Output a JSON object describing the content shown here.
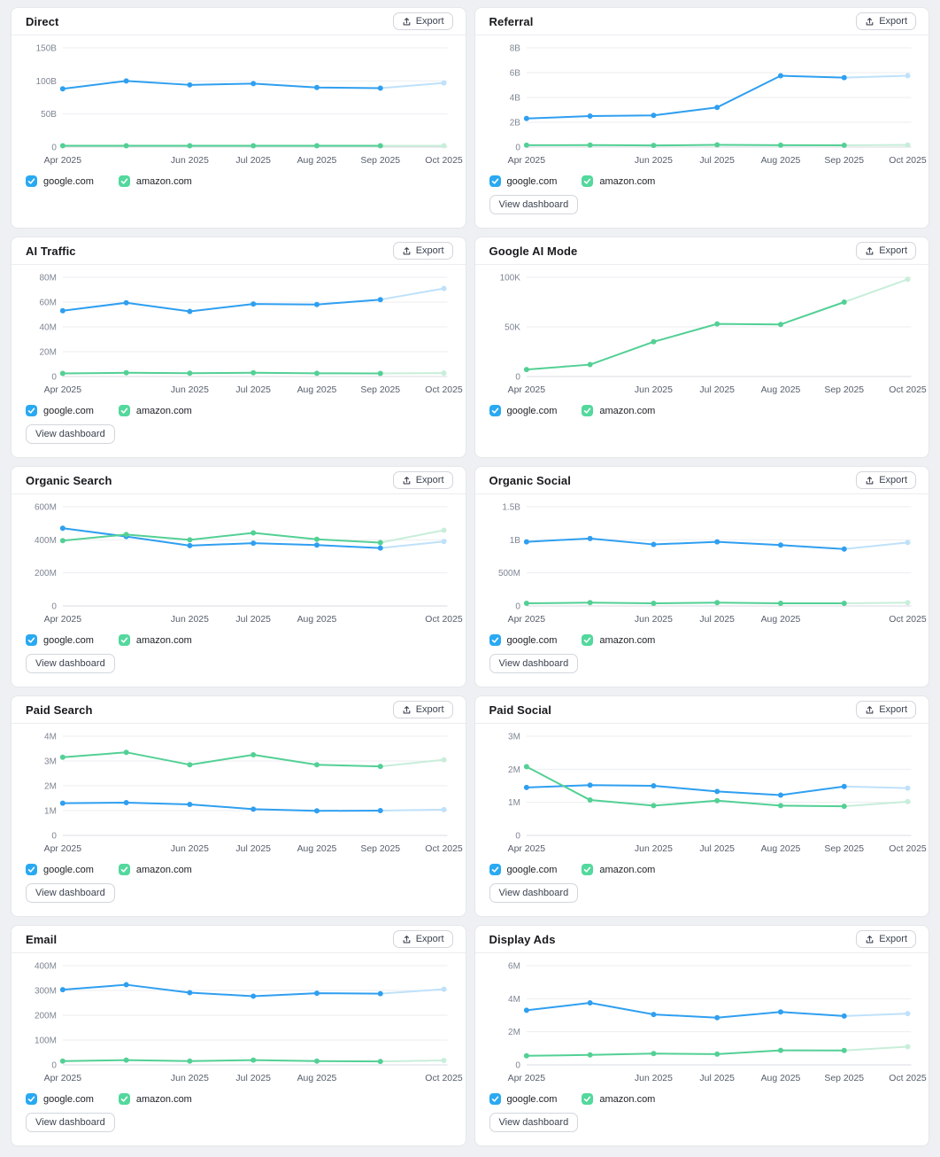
{
  "page": {
    "background": "#eef0f3",
    "card_background": "#ffffff"
  },
  "labels": {
    "export": "Export",
    "view_dashboard": "View dashboard"
  },
  "colors": {
    "google_line": "#2f9ff0",
    "google_forecast": "#bfe1fa",
    "amazon_line": "#53d095",
    "amazon_forecast": "#c8eeda",
    "google_checkbox": "#29a9f2",
    "amazon_checkbox": "#53d89d",
    "grid_line": "#eceef1",
    "zero_line": "#d8dbe0"
  },
  "legend": {
    "items": [
      {
        "label": "google.com",
        "checked": true,
        "color_key": "google"
      },
      {
        "label": "amazon.com",
        "checked": true,
        "color_key": "amazon"
      }
    ]
  },
  "cards": [
    {
      "title": "Direct",
      "has_view_dashboard": false,
      "chart_data": {
        "type": "line",
        "x": [
          "Apr 2025",
          "May 2025",
          "Jun 2025",
          "Jul 2025",
          "Aug 2025",
          "Sep 2025",
          "Oct 2025"
        ],
        "x_label_indices": [
          0,
          2,
          3,
          4,
          5,
          6
        ],
        "y_ticks": [
          {
            "label": "150B",
            "value": 150
          },
          {
            "label": "100B",
            "value": 100
          },
          {
            "label": "50B",
            "value": 50
          },
          {
            "label": "0",
            "value": 0
          }
        ],
        "y_max": 150,
        "unit": "B",
        "forecast_last_point": true,
        "series": [
          {
            "name": "google.com",
            "color_key": "google",
            "values": [
              88,
              100,
              94,
              96,
              90,
              89,
              97
            ]
          },
          {
            "name": "amazon.com",
            "color_key": "amazon",
            "values": [
              2,
              2,
              2,
              2,
              2,
              2,
              2
            ]
          }
        ]
      }
    },
    {
      "title": "Referral",
      "has_view_dashboard": true,
      "chart_data": {
        "type": "line",
        "x": [
          "Apr 2025",
          "May 2025",
          "Jun 2025",
          "Jul 2025",
          "Aug 2025",
          "Sep 2025",
          "Oct 2025"
        ],
        "x_label_indices": [
          0,
          2,
          3,
          4,
          5,
          6
        ],
        "y_ticks": [
          {
            "label": "8B",
            "value": 8
          },
          {
            "label": "6B",
            "value": 6
          },
          {
            "label": "4B",
            "value": 4
          },
          {
            "label": "2B",
            "value": 2
          },
          {
            "label": "0",
            "value": 0
          }
        ],
        "y_max": 8,
        "unit": "B",
        "forecast_last_point": true,
        "series": [
          {
            "name": "google.com",
            "color_key": "google",
            "values": [
              2.3,
              2.5,
              2.55,
              3.2,
              5.75,
              5.6,
              5.75
            ]
          },
          {
            "name": "amazon.com",
            "color_key": "amazon",
            "values": [
              0.15,
              0.16,
              0.13,
              0.18,
              0.15,
              0.14,
              0.17
            ]
          }
        ]
      }
    },
    {
      "title": "AI Traffic",
      "has_view_dashboard": true,
      "chart_data": {
        "type": "line",
        "x": [
          "Apr 2025",
          "May 2025",
          "Jun 2025",
          "Jul 2025",
          "Aug 2025",
          "Sep 2025",
          "Oct 2025"
        ],
        "x_label_indices": [
          0,
          2,
          3,
          4,
          5,
          6
        ],
        "y_ticks": [
          {
            "label": "80M",
            "value": 80
          },
          {
            "label": "60M",
            "value": 60
          },
          {
            "label": "40M",
            "value": 40
          },
          {
            "label": "20M",
            "value": 20
          },
          {
            "label": "0",
            "value": 0
          }
        ],
        "y_max": 80,
        "unit": "M",
        "forecast_last_point": true,
        "series": [
          {
            "name": "google.com",
            "color_key": "google",
            "values": [
              53,
              59.5,
              52.5,
              58.5,
              58,
              62,
              71
            ]
          },
          {
            "name": "amazon.com",
            "color_key": "amazon",
            "values": [
              2.5,
              3,
              2.7,
              3,
              2.6,
              2.5,
              2.8
            ]
          }
        ]
      }
    },
    {
      "title": "Google AI Mode",
      "has_view_dashboard": false,
      "chart_data": {
        "type": "line",
        "x": [
          "Apr 2025",
          "May 2025",
          "Jun 2025",
          "Jul 2025",
          "Aug 2025",
          "Sep 2025",
          "Oct 2025"
        ],
        "x_label_indices": [
          0,
          2,
          3,
          4,
          5,
          6
        ],
        "y_ticks": [
          {
            "label": "100K",
            "value": 100
          },
          {
            "label": "50K",
            "value": 50
          },
          {
            "label": "0",
            "value": 0
          }
        ],
        "y_max": 100,
        "unit": "K",
        "forecast_last_point": true,
        "series": [
          {
            "name": "amazon.com",
            "color_key": "amazon",
            "values": [
              7,
              12,
              35,
              53,
              52.5,
              75,
              98
            ]
          }
        ]
      }
    },
    {
      "title": "Organic Search",
      "has_view_dashboard": true,
      "chart_data": {
        "type": "line",
        "x": [
          "Apr 2025",
          "May 2025",
          "Jun 2025",
          "Jul 2025",
          "Aug 2025",
          "Sep 2025",
          "Oct 2025"
        ],
        "x_label_indices": [
          0,
          2,
          3,
          4,
          6
        ],
        "y_ticks": [
          {
            "label": "600M",
            "value": 600
          },
          {
            "label": "400M",
            "value": 400
          },
          {
            "label": "200M",
            "value": 200
          },
          {
            "label": "0",
            "value": 0
          }
        ],
        "y_max": 600,
        "unit": "M",
        "forecast_last_point": true,
        "series": [
          {
            "name": "google.com",
            "color_key": "google",
            "values": [
              470,
              420,
              365,
              380,
              368,
              350,
              390
            ]
          },
          {
            "name": "amazon.com",
            "color_key": "amazon",
            "values": [
              395,
              432,
              400,
              442,
              403,
              383,
              458
            ]
          }
        ]
      }
    },
    {
      "title": "Organic Social",
      "has_view_dashboard": true,
      "chart_data": {
        "type": "line",
        "x": [
          "Apr 2025",
          "May 2025",
          "Jun 2025",
          "Jul 2025",
          "Aug 2025",
          "Sep 2025",
          "Oct 2025"
        ],
        "x_label_indices": [
          0,
          2,
          3,
          4,
          6
        ],
        "y_ticks": [
          {
            "label": "1.5B",
            "value": 1.5
          },
          {
            "label": "1B",
            "value": 1
          },
          {
            "label": "500M",
            "value": 0.5
          },
          {
            "label": "0",
            "value": 0
          }
        ],
        "y_max": 1.5,
        "unit": "B",
        "forecast_last_point": true,
        "series": [
          {
            "name": "google.com",
            "color_key": "google",
            "values": [
              0.97,
              1.02,
              0.93,
              0.97,
              0.92,
              0.86,
              0.96
            ]
          },
          {
            "name": "amazon.com",
            "color_key": "amazon",
            "values": [
              0.04,
              0.05,
              0.04,
              0.05,
              0.04,
              0.04,
              0.05
            ]
          }
        ]
      }
    },
    {
      "title": "Paid Search",
      "has_view_dashboard": true,
      "chart_data": {
        "type": "line",
        "x": [
          "Apr 2025",
          "May 2025",
          "Jun 2025",
          "Jul 2025",
          "Aug 2025",
          "Sep 2025",
          "Oct 2025"
        ],
        "x_label_indices": [
          0,
          2,
          3,
          4,
          5,
          6
        ],
        "y_ticks": [
          {
            "label": "4M",
            "value": 4
          },
          {
            "label": "3M",
            "value": 3
          },
          {
            "label": "2M",
            "value": 2
          },
          {
            "label": "1M",
            "value": 1
          },
          {
            "label": "0",
            "value": 0
          }
        ],
        "y_max": 4,
        "unit": "M",
        "forecast_last_point": true,
        "series": [
          {
            "name": "google.com",
            "color_key": "google",
            "values": [
              1.3,
              1.32,
              1.25,
              1.06,
              0.99,
              1.0,
              1.04
            ]
          },
          {
            "name": "amazon.com",
            "color_key": "amazon",
            "values": [
              3.15,
              3.35,
              2.85,
              3.25,
              2.85,
              2.78,
              3.05
            ]
          }
        ]
      }
    },
    {
      "title": "Paid Social",
      "has_view_dashboard": true,
      "chart_data": {
        "type": "line",
        "x": [
          "Apr 2025",
          "May 2025",
          "Jun 2025",
          "Jul 2025",
          "Aug 2025",
          "Sep 2025",
          "Oct 2025"
        ],
        "x_label_indices": [
          0,
          2,
          3,
          4,
          5,
          6
        ],
        "y_ticks": [
          {
            "label": "3M",
            "value": 3
          },
          {
            "label": "2M",
            "value": 2
          },
          {
            "label": "1M",
            "value": 1
          },
          {
            "label": "0",
            "value": 0
          }
        ],
        "y_max": 3,
        "unit": "M",
        "forecast_last_point": true,
        "series": [
          {
            "name": "google.com",
            "color_key": "google",
            "values": [
              1.45,
              1.52,
              1.5,
              1.33,
              1.22,
              1.48,
              1.43
            ]
          },
          {
            "name": "amazon.com",
            "color_key": "amazon",
            "values": [
              2.08,
              1.07,
              0.9,
              1.05,
              0.9,
              0.88,
              1.02
            ]
          }
        ]
      }
    },
    {
      "title": "Email",
      "has_view_dashboard": true,
      "chart_data": {
        "type": "line",
        "x": [
          "Apr 2025",
          "May 2025",
          "Jun 2025",
          "Jul 2025",
          "Aug 2025",
          "Sep 2025",
          "Oct 2025"
        ],
        "x_label_indices": [
          0,
          2,
          3,
          4,
          6
        ],
        "y_ticks": [
          {
            "label": "400M",
            "value": 400
          },
          {
            "label": "300M",
            "value": 300
          },
          {
            "label": "200M",
            "value": 200
          },
          {
            "label": "100M",
            "value": 100
          },
          {
            "label": "0",
            "value": 0
          }
        ],
        "y_max": 400,
        "unit": "M",
        "forecast_last_point": true,
        "series": [
          {
            "name": "google.com",
            "color_key": "google",
            "values": [
              303,
              323,
              291,
              277,
              289,
              287,
              305
            ]
          },
          {
            "name": "amazon.com",
            "color_key": "amazon",
            "values": [
              15,
              19,
              15,
              19,
              15,
              14,
              18
            ]
          }
        ]
      }
    },
    {
      "title": "Display Ads",
      "has_view_dashboard": true,
      "chart_data": {
        "type": "line",
        "x": [
          "Apr 2025",
          "May 2025",
          "Jun 2025",
          "Jul 2025",
          "Aug 2025",
          "Sep 2025",
          "Oct 2025"
        ],
        "x_label_indices": [
          0,
          2,
          3,
          4,
          5,
          6
        ],
        "y_ticks": [
          {
            "label": "6M",
            "value": 6
          },
          {
            "label": "4M",
            "value": 4
          },
          {
            "label": "2M",
            "value": 2
          },
          {
            "label": "0",
            "value": 0
          }
        ],
        "y_max": 6,
        "unit": "M",
        "forecast_last_point": true,
        "series": [
          {
            "name": "google.com",
            "color_key": "google",
            "values": [
              3.3,
              3.75,
              3.05,
              2.85,
              3.2,
              2.95,
              3.1
            ]
          },
          {
            "name": "amazon.com",
            "color_key": "amazon",
            "values": [
              0.55,
              0.6,
              0.68,
              0.65,
              0.88,
              0.87,
              1.1
            ]
          }
        ]
      }
    }
  ]
}
